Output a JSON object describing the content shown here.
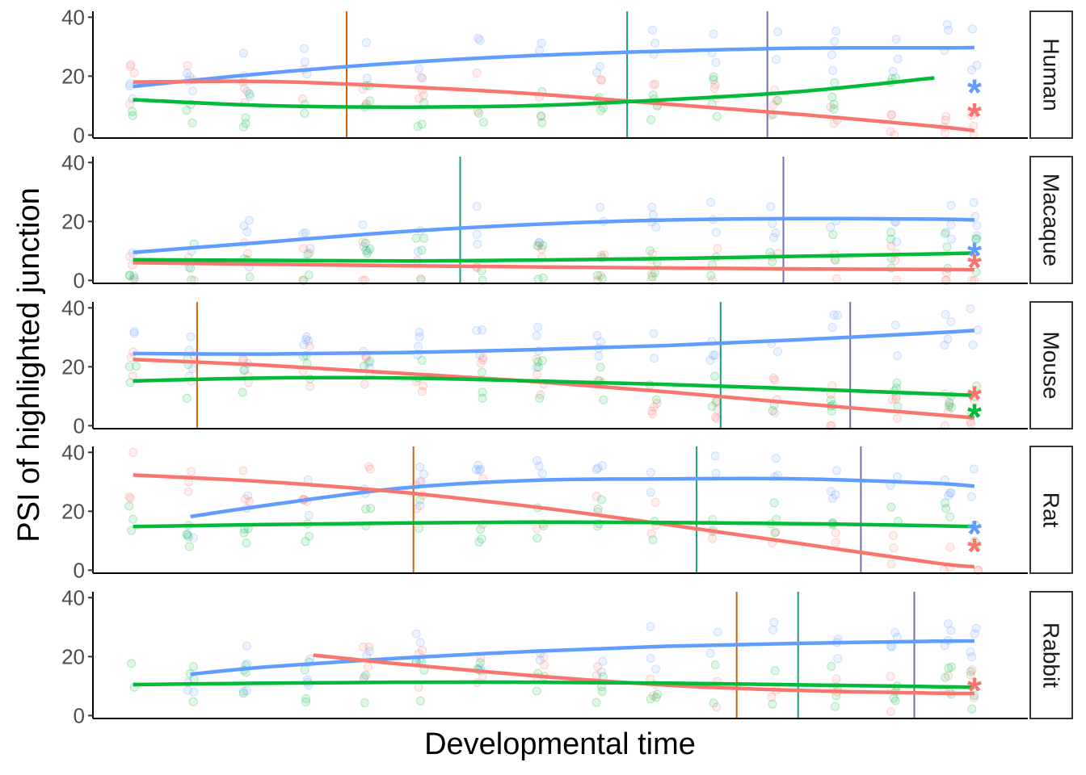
{
  "chart_data": {
    "type": "line",
    "xlabel": "Developmental time",
    "ylabel": "PSI of highlighted junction",
    "ylim": [
      -1,
      42
    ],
    "xlim": [
      -3,
      67
    ],
    "y_ticks": [
      0,
      20,
      40
    ],
    "grid": false,
    "series_colors": {
      "blue": "#619CFF",
      "red": "#F8766D",
      "green": "#00BA38"
    },
    "marker_colors": {
      "orange": "#D95F02",
      "teal": "#1B9E77",
      "purple": "#7570B3"
    },
    "panels": [
      {
        "label": "Human",
        "lines": [
          {
            "color": "blue",
            "points": [
              [
                0,
                16.5
              ],
              [
                10,
                21
              ],
              [
                20,
                24.5
              ],
              [
                30,
                27
              ],
              [
                40,
                28.5
              ],
              [
                50,
                29.5
              ],
              [
                60,
                29.6
              ],
              [
                63,
                29.7
              ]
            ]
          },
          {
            "color": "red",
            "points": [
              [
                0,
                18
              ],
              [
                10,
                18.2
              ],
              [
                20,
                16.5
              ],
              [
                30,
                14
              ],
              [
                40,
                10.5
              ],
              [
                50,
                7
              ],
              [
                60,
                3
              ],
              [
                63,
                1.5
              ]
            ]
          },
          {
            "color": "green",
            "points": [
              [
                0,
                12
              ],
              [
                10,
                10
              ],
              [
                20,
                9.5
              ],
              [
                30,
                10
              ],
              [
                40,
                12
              ],
              [
                50,
                14.8
              ],
              [
                60,
                19.4
              ]
            ]
          }
        ],
        "markers": [
          {
            "color": "orange",
            "x": 16
          },
          {
            "color": "teal",
            "x": 37
          },
          {
            "color": "purple",
            "x": 47.5
          }
        ],
        "stars": [
          {
            "color": "blue",
            "y": 15
          },
          {
            "color": "red",
            "y": 7
          }
        ]
      },
      {
        "label": "Macaque",
        "lines": [
          {
            "color": "blue",
            "points": [
              [
                0,
                9.5
              ],
              [
                10,
                13
              ],
              [
                20,
                16.5
              ],
              [
                30,
                19
              ],
              [
                40,
                20.5
              ],
              [
                50,
                21
              ],
              [
                60,
                20.8
              ],
              [
                63,
                20.5
              ]
            ]
          },
          {
            "color": "red",
            "points": [
              [
                0,
                6
              ],
              [
                10,
                5.5
              ],
              [
                20,
                5
              ],
              [
                30,
                4.6
              ],
              [
                40,
                4.2
              ],
              [
                50,
                3.9
              ],
              [
                60,
                3.7
              ],
              [
                63,
                3.6
              ]
            ]
          },
          {
            "color": "green",
            "points": [
              [
                0,
                7
              ],
              [
                10,
                6.8
              ],
              [
                20,
                6.6
              ],
              [
                30,
                6.9
              ],
              [
                40,
                7.4
              ],
              [
                50,
                8.2
              ],
              [
                60,
                9
              ],
              [
                63,
                9.3
              ]
            ]
          }
        ],
        "markers": [
          {
            "color": "teal",
            "x": 24.5
          },
          {
            "color": "purple",
            "x": 48.7
          }
        ],
        "stars": [
          {
            "color": "blue",
            "y": 9
          },
          {
            "color": "red",
            "y": 5
          }
        ]
      },
      {
        "label": "Mouse",
        "lines": [
          {
            "color": "blue",
            "points": [
              [
                0,
                24.5
              ],
              [
                10,
                24.3
              ],
              [
                20,
                24.8
              ],
              [
                30,
                25.8
              ],
              [
                40,
                27.2
              ],
              [
                50,
                29.2
              ],
              [
                60,
                31.5
              ],
              [
                63,
                32.3
              ]
            ]
          },
          {
            "color": "red",
            "points": [
              [
                0,
                22.5
              ],
              [
                10,
                20.5
              ],
              [
                20,
                17.8
              ],
              [
                30,
                15
              ],
              [
                40,
                11.5
              ],
              [
                50,
                7.5
              ],
              [
                60,
                3.8
              ],
              [
                63,
                2.7
              ]
            ]
          },
          {
            "color": "green",
            "points": [
              [
                0,
                15.2
              ],
              [
                10,
                16.2
              ],
              [
                20,
                16.2
              ],
              [
                30,
                15.2
              ],
              [
                40,
                14
              ],
              [
                50,
                12.5
              ],
              [
                60,
                10.8
              ],
              [
                63,
                10.3
              ]
            ]
          }
        ],
        "markers": [
          {
            "color": "orange",
            "x": 4.8
          },
          {
            "color": "teal",
            "x": 44
          },
          {
            "color": "purple",
            "x": 53.7
          }
        ],
        "stars": [
          {
            "color": "red",
            "y": 9.5
          },
          {
            "color": "green",
            "y": 3.5
          }
        ]
      },
      {
        "label": "Rat",
        "lines": [
          {
            "color": "blue",
            "points": [
              [
                4.3,
                18.2
              ],
              [
                10,
                22
              ],
              [
                20,
                27.8
              ],
              [
                30,
                30.5
              ],
              [
                40,
                31
              ],
              [
                50,
                31
              ],
              [
                60,
                29.5
              ],
              [
                63,
                28.5
              ]
            ]
          },
          {
            "color": "red",
            "points": [
              [
                0,
                32.3
              ],
              [
                10,
                30
              ],
              [
                20,
                26.5
              ],
              [
                30,
                21.5
              ],
              [
                40,
                15.5
              ],
              [
                50,
                9
              ],
              [
                60,
                2.5
              ],
              [
                63,
                1.2
              ]
            ]
          },
          {
            "color": "green",
            "points": [
              [
                0,
                14.8
              ],
              [
                10,
                15.5
              ],
              [
                20,
                16
              ],
              [
                30,
                16.3
              ],
              [
                40,
                16.2
              ],
              [
                50,
                15.8
              ],
              [
                60,
                15.1
              ],
              [
                63,
                14.8
              ]
            ]
          }
        ],
        "markers": [
          {
            "color": "orange",
            "x": 21
          },
          {
            "color": "teal",
            "x": 42.2
          },
          {
            "color": "purple",
            "x": 54.5
          }
        ],
        "stars": [
          {
            "color": "blue",
            "y": 13
          },
          {
            "color": "red",
            "y": 7
          }
        ]
      },
      {
        "label": "Rabbit",
        "lines": [
          {
            "color": "blue",
            "points": [
              [
                4.3,
                14
              ],
              [
                10,
                16.5
              ],
              [
                20,
                19.5
              ],
              [
                30,
                21.8
              ],
              [
                40,
                23.5
              ],
              [
                50,
                24.5
              ],
              [
                60,
                25.2
              ],
              [
                63,
                25.3
              ]
            ]
          },
          {
            "color": "red",
            "points": [
              [
                13.5,
                20.5
              ],
              [
                20,
                17.5
              ],
              [
                30,
                13.5
              ],
              [
                40,
                10.3
              ],
              [
                50,
                8.5
              ],
              [
                60,
                7.6
              ],
              [
                63,
                7.5
              ]
            ]
          },
          {
            "color": "green",
            "points": [
              [
                0,
                10.5
              ],
              [
                10,
                11
              ],
              [
                20,
                11.3
              ],
              [
                30,
                11.3
              ],
              [
                40,
                11
              ],
              [
                50,
                10.4
              ],
              [
                60,
                9.8
              ],
              [
                63,
                9.6
              ]
            ]
          }
        ],
        "markers": [
          {
            "color": "orange",
            "x": 45.2
          },
          {
            "color": "teal",
            "x": 49.8
          },
          {
            "color": "purple",
            "x": 58.5
          }
        ],
        "stars": [
          {
            "color": "red",
            "y": 9
          }
        ]
      }
    ]
  }
}
